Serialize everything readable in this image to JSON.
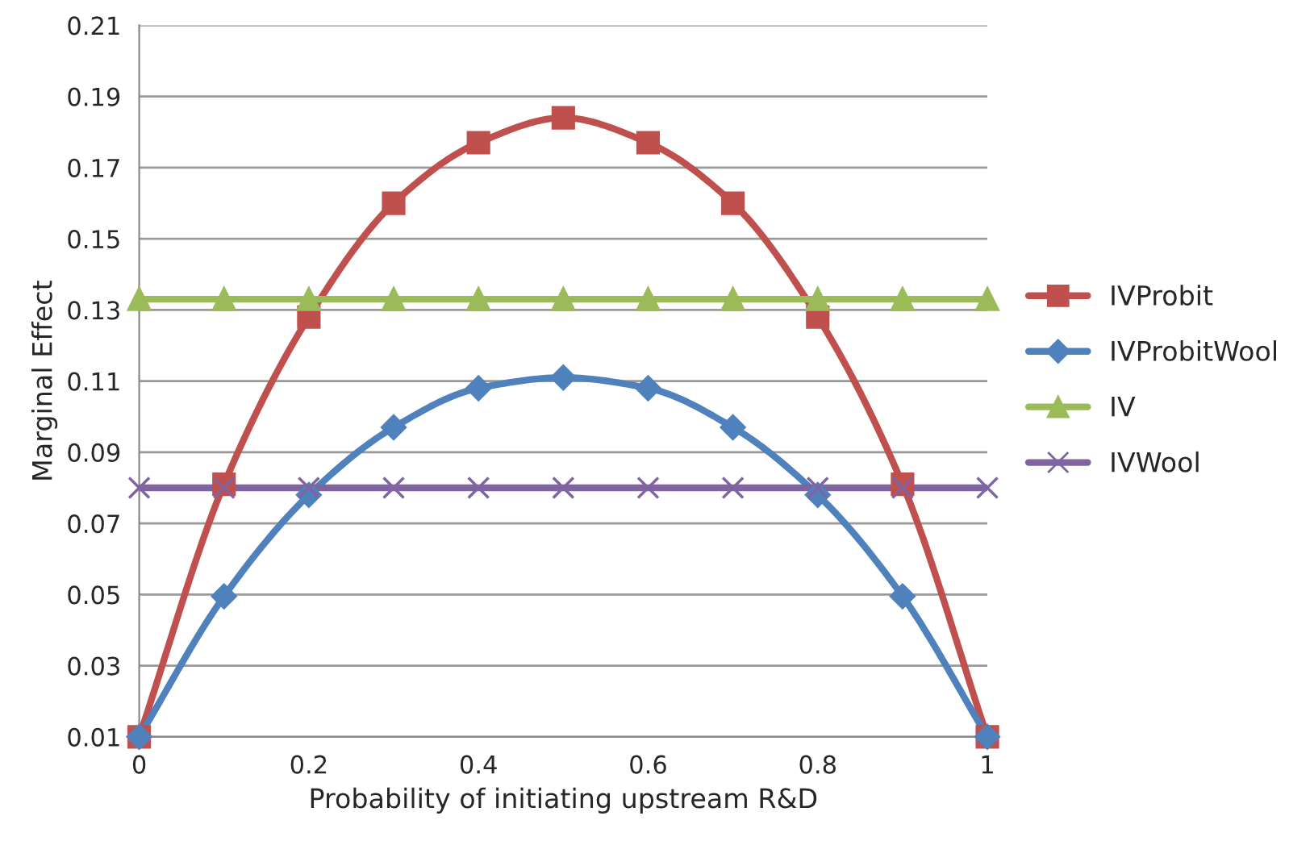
{
  "chart_data": {
    "type": "line",
    "xlabel": "Probability of initiating upstream R&D",
    "ylabel": "Marginal Effect",
    "x": [
      0,
      0.1,
      0.2,
      0.3,
      0.4,
      0.5,
      0.6,
      0.7,
      0.8,
      0.9,
      1
    ],
    "series": [
      {
        "name": "IVProbit",
        "color": "#c0504d",
        "marker": "square",
        "values": [
          0.01,
          0.081,
          0.128,
          0.16,
          0.177,
          0.184,
          0.177,
          0.16,
          0.128,
          0.081,
          0.01
        ]
      },
      {
        "name": "IVProbitWool",
        "color": "#4f81bd",
        "marker": "diamond",
        "values": [
          0.01,
          0.0495,
          0.078,
          0.097,
          0.108,
          0.111,
          0.108,
          0.097,
          0.078,
          0.0495,
          0.01
        ]
      },
      {
        "name": "IV",
        "color": "#9bbb59",
        "marker": "triangle",
        "values": [
          0.133,
          0.133,
          0.133,
          0.133,
          0.133,
          0.133,
          0.133,
          0.133,
          0.133,
          0.133,
          0.133
        ]
      },
      {
        "name": "IVWool",
        "color": "#8064a2",
        "marker": "cross",
        "values": [
          0.08,
          0.08,
          0.08,
          0.08,
          0.08,
          0.08,
          0.08,
          0.08,
          0.08,
          0.08,
          0.08
        ]
      }
    ],
    "xlim": [
      0,
      1
    ],
    "xticks": [
      0,
      0.2,
      0.4,
      0.6,
      0.8,
      1
    ],
    "ylim": [
      0.01,
      0.21
    ],
    "yticks": [
      0.01,
      0.03,
      0.05,
      0.07,
      0.09,
      0.11,
      0.13,
      0.15,
      0.17,
      0.19,
      0.21
    ],
    "grid": "y",
    "legend": "right"
  }
}
